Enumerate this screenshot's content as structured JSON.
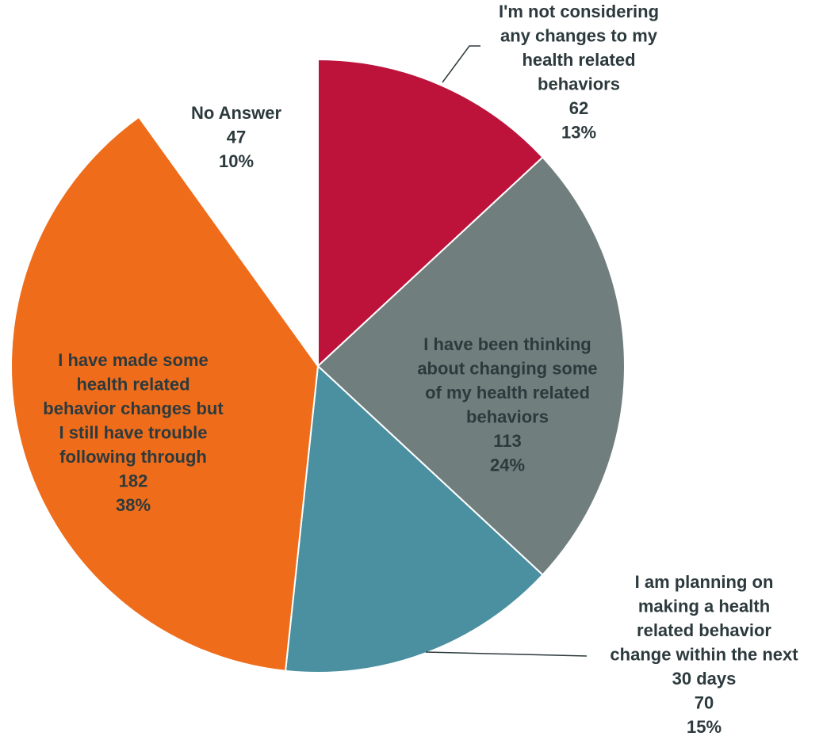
{
  "chart_data": {
    "type": "pie",
    "start_position": "12 o'clock",
    "direction": "clockwise",
    "slices": [
      {
        "label": [
          "I'm not considering",
          "any changes to my",
          "health related",
          "behaviors"
        ],
        "count": "62",
        "percent": "13%",
        "value": 62,
        "color": "#bd133b"
      },
      {
        "label": [
          "I have been thinking",
          "about changing some",
          "of my health related",
          "behaviors"
        ],
        "count": "113",
        "percent": "24%",
        "value": 113,
        "color": "#717e7e"
      },
      {
        "label": [
          "I am planning on",
          "making a health",
          "related behavior",
          "change within the next",
          "30 days"
        ],
        "count": "70",
        "percent": "15%",
        "value": 70,
        "color": "#4a90a0"
      },
      {
        "label": [
          "I have made some",
          "health related",
          "behavior changes but",
          "I still have trouble",
          "following through"
        ],
        "count": "182",
        "percent": "38%",
        "value": 182,
        "color": "#ef6c1a"
      },
      {
        "label": [
          "No Answer"
        ],
        "count": "47",
        "percent": "10%",
        "value": 47,
        "color": "#ffffff"
      }
    ]
  }
}
